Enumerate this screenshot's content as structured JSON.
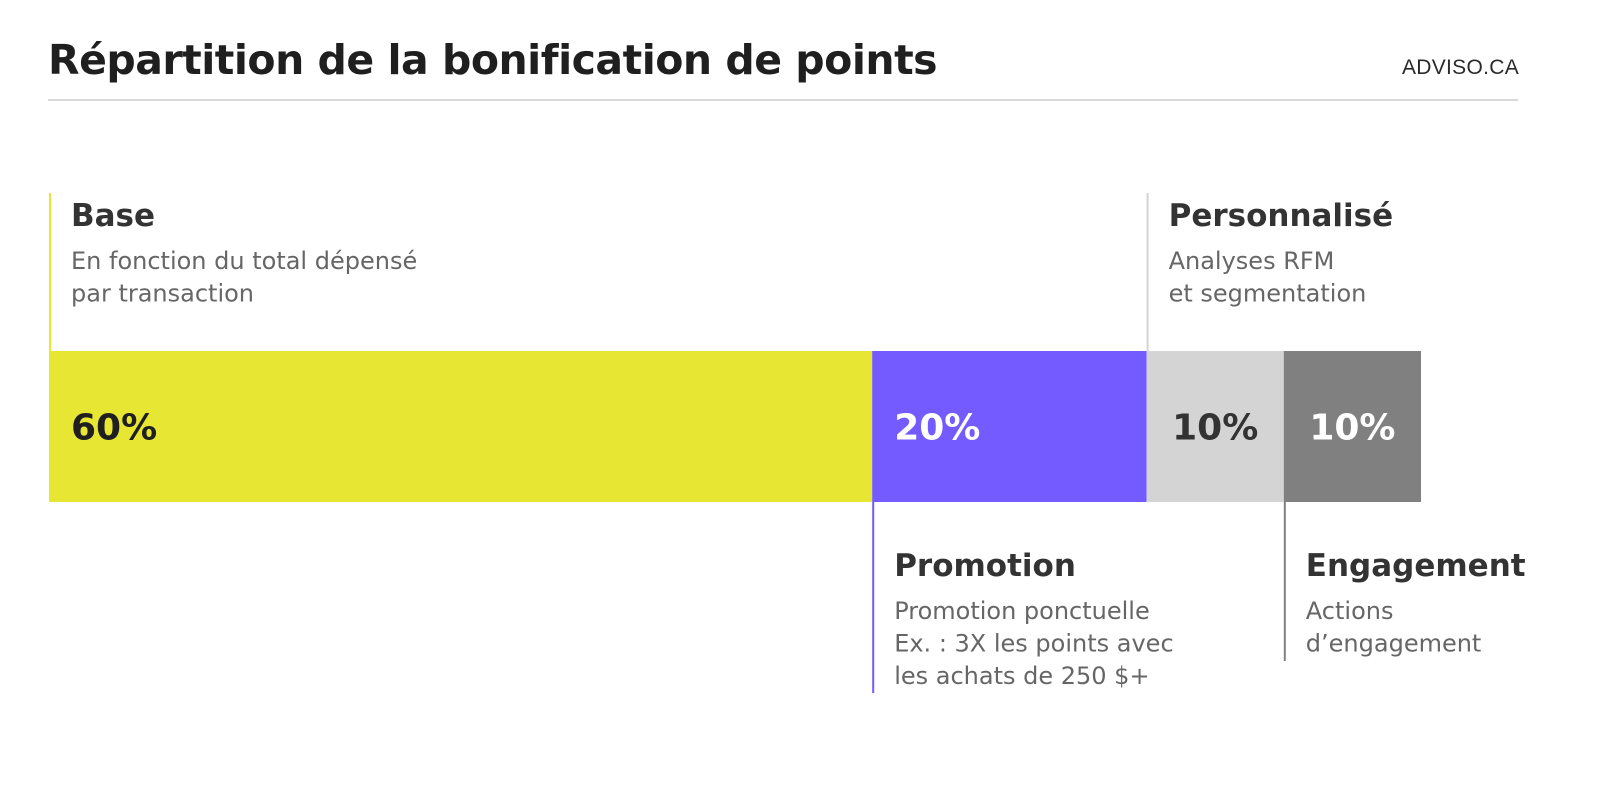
{
  "header": {
    "title": "Répartition de la bonification de points",
    "source": "ADVISO.CA"
  },
  "chart_data": {
    "type": "bar",
    "orientation": "horizontal-stacked",
    "title": "Répartition de la bonification de points",
    "xlabel": "",
    "ylabel": "",
    "grid": false,
    "segments": [
      {
        "name": "Base",
        "value": 60,
        "value_label": "60%",
        "description": [
          "En fonction du total dépensé",
          "par transaction"
        ],
        "color": "#e6e633",
        "text_color": "#1f1f1f",
        "line_color": "#e6e633",
        "label_position": "top"
      },
      {
        "name": "Promotion",
        "value": 20,
        "value_label": "20%",
        "description": [
          "Promotion ponctuelle",
          "Ex. : 3X les points avec",
          "les achats de 250 $+"
        ],
        "color": "#745bff",
        "text_color": "#ffffff",
        "line_color": "#745bff",
        "label_position": "bottom"
      },
      {
        "name": "Personnalisé",
        "value": 10,
        "value_label": "10%",
        "description": [
          "Analyses RFM",
          "et segmentation"
        ],
        "color": "#d4d4d4",
        "text_color": "#333333",
        "line_color": "#d4d4d4",
        "label_position": "top"
      },
      {
        "name": "Engagement",
        "value": 10,
        "value_label": "10%",
        "description": [
          "Actions",
          "d’engagement"
        ],
        "color": "#808080",
        "text_color": "#ffffff",
        "line_color": "#808080",
        "label_position": "bottom"
      }
    ]
  }
}
